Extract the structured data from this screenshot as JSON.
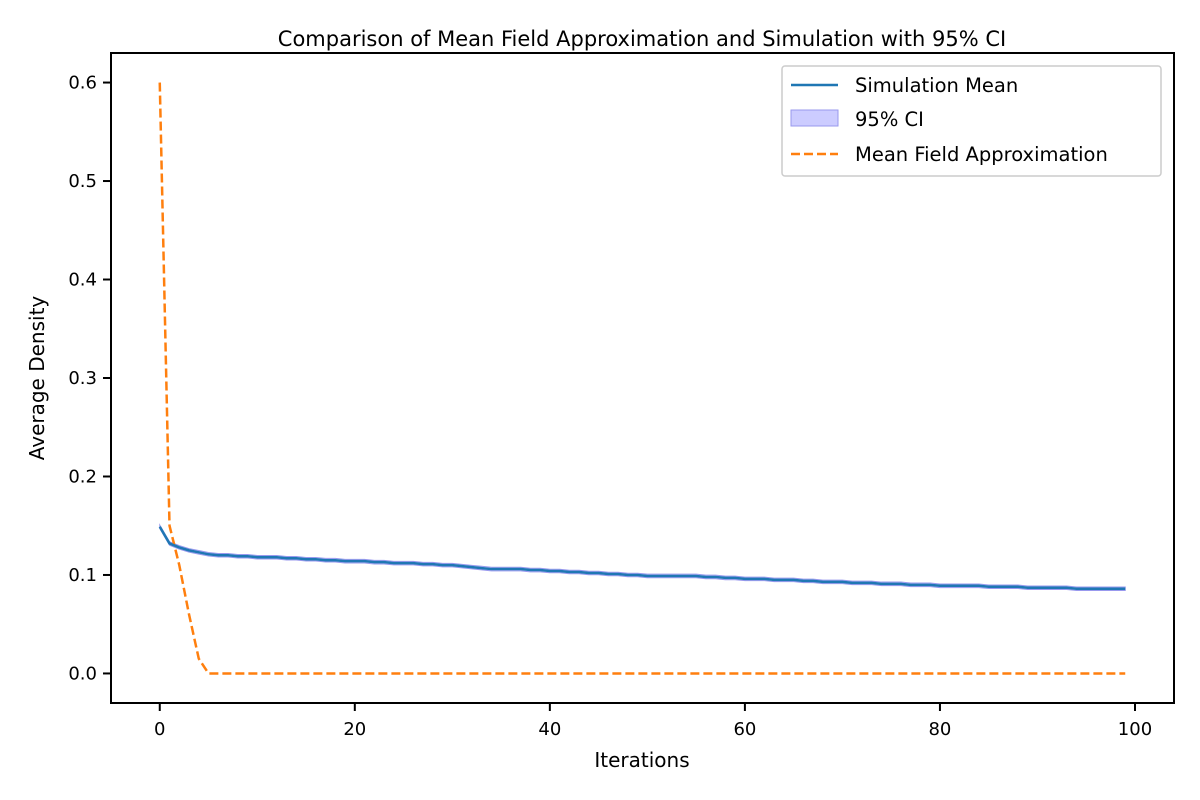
{
  "chart_data": {
    "type": "line",
    "title": "Comparison of Mean Field Approximation and Simulation with 95% CI",
    "xlabel": "Iterations",
    "ylabel": "Average Density",
    "xlim": [
      -5,
      104
    ],
    "ylim": [
      -0.03,
      0.63
    ],
    "xticks": [
      0,
      20,
      40,
      60,
      80,
      100
    ],
    "xtick_labels": [
      "0",
      "20",
      "40",
      "60",
      "80",
      "100"
    ],
    "yticks": [
      0.0,
      0.1,
      0.2,
      0.3,
      0.4,
      0.5,
      0.6
    ],
    "ytick_labels": [
      "0.0",
      "0.1",
      "0.2",
      "0.3",
      "0.4",
      "0.5",
      "0.6"
    ],
    "grid": false,
    "legend_position": "top-right",
    "legend_entries": [
      "Simulation Mean",
      "95% CI",
      "Mean Field Approximation"
    ],
    "colors": {
      "simulation_mean": "#1f77b4",
      "ci_fill": "#ccccff",
      "ci_edge": "#9999ee",
      "mean_field": "#ff7f0e"
    },
    "x_points": [
      0,
      1,
      2,
      3,
      4,
      5,
      6,
      7,
      8,
      9,
      10,
      11,
      12,
      13,
      14,
      15,
      16,
      17,
      18,
      19,
      20,
      21,
      22,
      23,
      24,
      25,
      26,
      27,
      28,
      29,
      30,
      31,
      32,
      33,
      34,
      35,
      36,
      37,
      38,
      39,
      40,
      41,
      42,
      43,
      44,
      45,
      46,
      47,
      48,
      49,
      50,
      51,
      52,
      53,
      54,
      55,
      56,
      57,
      58,
      59,
      60,
      61,
      62,
      63,
      64,
      65,
      66,
      67,
      68,
      69,
      70,
      71,
      72,
      73,
      74,
      75,
      76,
      77,
      78,
      79,
      80,
      81,
      82,
      83,
      84,
      85,
      86,
      87,
      88,
      89,
      90,
      91,
      92,
      93,
      94,
      95,
      96,
      97,
      98,
      99
    ],
    "series": [
      {
        "name": "Simulation Mean",
        "style": "solid",
        "values": [
          0.149,
          0.132,
          0.128,
          0.125,
          0.123,
          0.121,
          0.12,
          0.12,
          0.119,
          0.119,
          0.118,
          0.118,
          0.118,
          0.117,
          0.117,
          0.116,
          0.116,
          0.115,
          0.115,
          0.114,
          0.114,
          0.114,
          0.113,
          0.113,
          0.112,
          0.112,
          0.112,
          0.111,
          0.111,
          0.11,
          0.11,
          0.109,
          0.108,
          0.107,
          0.106,
          0.106,
          0.106,
          0.106,
          0.105,
          0.105,
          0.104,
          0.104,
          0.103,
          0.103,
          0.102,
          0.102,
          0.101,
          0.101,
          0.1,
          0.1,
          0.099,
          0.099,
          0.099,
          0.099,
          0.099,
          0.099,
          0.098,
          0.098,
          0.097,
          0.097,
          0.096,
          0.096,
          0.096,
          0.095,
          0.095,
          0.095,
          0.094,
          0.094,
          0.093,
          0.093,
          0.093,
          0.092,
          0.092,
          0.092,
          0.091,
          0.091,
          0.091,
          0.09,
          0.09,
          0.09,
          0.089,
          0.089,
          0.089,
          0.089,
          0.089,
          0.088,
          0.088,
          0.088,
          0.088,
          0.087,
          0.087,
          0.087,
          0.087,
          0.087,
          0.086,
          0.086,
          0.086,
          0.086,
          0.086,
          0.086
        ],
        "ci_halfwidth": 0.0018
      },
      {
        "name": "Mean Field Approximation",
        "style": "dashed",
        "values": [
          0.6,
          0.15,
          0.11,
          0.06,
          0.015,
          0.0,
          0.0,
          0.0,
          0.0,
          0.0,
          0.0,
          0.0,
          0.0,
          0.0,
          0.0,
          0.0,
          0.0,
          0.0,
          0.0,
          0.0,
          0.0,
          0.0,
          0.0,
          0.0,
          0.0,
          0.0,
          0.0,
          0.0,
          0.0,
          0.0,
          0.0,
          0.0,
          0.0,
          0.0,
          0.0,
          0.0,
          0.0,
          0.0,
          0.0,
          0.0,
          0.0,
          0.0,
          0.0,
          0.0,
          0.0,
          0.0,
          0.0,
          0.0,
          0.0,
          0.0,
          0.0,
          0.0,
          0.0,
          0.0,
          0.0,
          0.0,
          0.0,
          0.0,
          0.0,
          0.0,
          0.0,
          0.0,
          0.0,
          0.0,
          0.0,
          0.0,
          0.0,
          0.0,
          0.0,
          0.0,
          0.0,
          0.0,
          0.0,
          0.0,
          0.0,
          0.0,
          0.0,
          0.0,
          0.0,
          0.0,
          0.0,
          0.0,
          0.0,
          0.0,
          0.0,
          0.0,
          0.0,
          0.0,
          0.0,
          0.0,
          0.0,
          0.0,
          0.0,
          0.0,
          0.0,
          0.0,
          0.0,
          0.0,
          0.0,
          0.0
        ]
      }
    ]
  }
}
